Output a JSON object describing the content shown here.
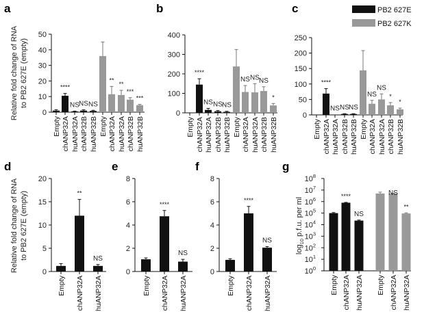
{
  "figure": {
    "legend": {
      "entries": [
        {
          "label": "PB2 627E",
          "color": "#111111"
        },
        {
          "label": "PB2 627K",
          "color": "#999999"
        }
      ],
      "placement": "top-right (panel c)"
    },
    "colors": {
      "E": "#111111",
      "K": "#999999"
    }
  },
  "chart_data": [
    {
      "panel": "a",
      "type": "bar",
      "ylabel": "Relative fold change of RNA\nto PB2 627E (empty)",
      "ylabel_lines": [
        "Relative fold change of RNA",
        "to PB2 627E (empty)"
      ],
      "ylim": [
        0,
        50
      ],
      "yticks": [
        0,
        10,
        20,
        30,
        40,
        50
      ],
      "ytick_labels": [
        "0",
        "10",
        "20",
        "30",
        "40",
        "50"
      ],
      "categories": [
        "Empty",
        "chANP32A",
        "huANP32A",
        "chANP32B",
        "huANP32B",
        "Empty",
        "chANP32A",
        "huANP32A",
        "chANP32B",
        "huANP32B"
      ],
      "groups": [
        "E",
        "E",
        "E",
        "E",
        "E",
        "K",
        "K",
        "K",
        "K",
        "K"
      ],
      "values": [
        1,
        10.5,
        0.5,
        1,
        0.8,
        36,
        11.5,
        11,
        8,
        4.5
      ],
      "errors": [
        0.6,
        1.5,
        0.2,
        0.5,
        0.4,
        9,
        5,
        3,
        1.3,
        0.5
      ],
      "significance": [
        "",
        "****",
        "NS",
        "NS",
        "NS",
        "",
        "**",
        "**",
        "***",
        "***"
      ]
    },
    {
      "panel": "b",
      "type": "bar",
      "ylabel": "",
      "ylabel_lines": [],
      "ylim": [
        0,
        400
      ],
      "yticks": [
        0,
        100,
        200,
        300,
        400
      ],
      "ytick_labels": [
        "0",
        "100",
        "200",
        "300",
        "400"
      ],
      "categories": [
        "Empty",
        "chANP32A",
        "huANP32A",
        "chANP32B",
        "huANP32B",
        "Empty",
        "chANP32A",
        "huANP32A",
        "chANP32B",
        "huANP32B"
      ],
      "groups": [
        "E",
        "E",
        "E",
        "E",
        "E",
        "K",
        "K",
        "K",
        "K",
        "K"
      ],
      "values": [
        1,
        145,
        15,
        8,
        5,
        238,
        107,
        105,
        112,
        38
      ],
      "errors": [
        0,
        30,
        8,
        4,
        3,
        87,
        33,
        45,
        22,
        10
      ],
      "significance": [
        "",
        "****",
        "NS",
        "NS",
        "NS",
        "",
        "NS",
        "NS",
        "NS",
        "*"
      ]
    },
    {
      "panel": "c",
      "type": "bar",
      "ylabel": "",
      "ylabel_lines": [],
      "ylim": [
        0,
        250
      ],
      "yticks": [
        0,
        50,
        100,
        150,
        200,
        250
      ],
      "ytick_labels": [
        "0",
        "50",
        "100",
        "150",
        "200",
        "250"
      ],
      "categories": [
        "Empty",
        "chANP32A",
        "huANP32A",
        "chANP32B",
        "huANP32B",
        "Empty",
        "chANP32A",
        "huANP32A",
        "chANP32B",
        "huANP32B"
      ],
      "groups": [
        "E",
        "E",
        "E",
        "E",
        "E",
        "K",
        "K",
        "K",
        "K",
        "K"
      ],
      "values": [
        1,
        69,
        1,
        3,
        3,
        144,
        36,
        50,
        31,
        18
      ],
      "errors": [
        0,
        16,
        0,
        1,
        1,
        64,
        11,
        18,
        9,
        4
      ],
      "significance": [
        "",
        "****",
        "NS",
        "NS",
        "NS",
        "",
        "NS",
        "NS",
        "*",
        "*"
      ]
    },
    {
      "panel": "d",
      "type": "bar",
      "ylabel": "Relative fold change of RNA\nto PB2 627E (empty)",
      "ylabel_lines": [
        "Relative fold change of RNA",
        "to PB2 627E (empty)"
      ],
      "ylim": [
        0,
        20
      ],
      "yticks": [
        0,
        5,
        10,
        15,
        20
      ],
      "ytick_labels": [
        "0",
        "5",
        "10",
        "15",
        "20"
      ],
      "categories": [
        "Empty",
        "chANP32A",
        "huANP32A"
      ],
      "groups": [
        "E",
        "E",
        "E"
      ],
      "values": [
        1.2,
        12,
        1.2
      ],
      "errors": [
        0.5,
        3.5,
        0.3
      ],
      "significance": [
        "",
        "**",
        "NS"
      ]
    },
    {
      "panel": "e",
      "type": "bar",
      "ylabel": "",
      "ylabel_lines": [],
      "ylim": [
        0,
        8
      ],
      "yticks": [
        0,
        2,
        4,
        6,
        8
      ],
      "ytick_labels": [
        "0",
        "2",
        "4",
        "6",
        "8"
      ],
      "categories": [
        "Empty",
        "chANP32A",
        "huANP32A"
      ],
      "groups": [
        "E",
        "E",
        "E"
      ],
      "values": [
        1.05,
        4.75,
        0.85
      ],
      "errors": [
        0.12,
        0.5,
        0.2
      ],
      "significance": [
        "",
        "****",
        "NS"
      ]
    },
    {
      "panel": "f",
      "type": "bar",
      "ylabel": "",
      "ylabel_lines": [],
      "ylim": [
        0,
        8
      ],
      "yticks": [
        0,
        2,
        4,
        6,
        8
      ],
      "ytick_labels": [
        "0",
        "2",
        "4",
        "6",
        "8"
      ],
      "categories": [
        "Empty",
        "chANP32A",
        "huANP32A"
      ],
      "groups": [
        "E",
        "E",
        "E"
      ],
      "values": [
        1.0,
        5.0,
        2.05
      ],
      "errors": [
        0.1,
        0.6,
        0.1
      ],
      "significance": [
        "",
        "****",
        "NS"
      ]
    },
    {
      "panel": "g",
      "type": "bar",
      "yscale": "log10",
      "ylabel": "log10 p.f.u. per ml",
      "ylabel_lines": [
        "log",
        "10",
        " p.f.u. per ml"
      ],
      "ylim_log10": [
        0,
        8
      ],
      "yticks_log10": [
        0,
        1,
        2,
        3,
        4,
        5,
        6,
        7,
        8
      ],
      "ytick_labels": [
        "10",
        "10",
        "10",
        "10",
        "10",
        "10",
        "10",
        "10",
        "10"
      ],
      "ytick_exponents": [
        "0",
        "1",
        "2",
        "3",
        "4",
        "5",
        "6",
        "7",
        "8"
      ],
      "categories": [
        "Empty",
        "chANP32A",
        "huANP32A",
        "Empty",
        "chANP32A",
        "huANP32A"
      ],
      "groups": [
        "E",
        "E",
        "E",
        "K",
        "K",
        "K"
      ],
      "values_log10": [
        5.0,
        5.9,
        4.35,
        6.7,
        6.7,
        4.97
      ],
      "errors_log10": [
        0.05,
        0.03,
        0.05,
        0.12,
        0.03,
        0.05
      ],
      "significance": [
        "",
        "****",
        "NS",
        "",
        "",
        "**"
      ],
      "group_annotation": {
        "group": "K",
        "label": "NS"
      }
    }
  ]
}
